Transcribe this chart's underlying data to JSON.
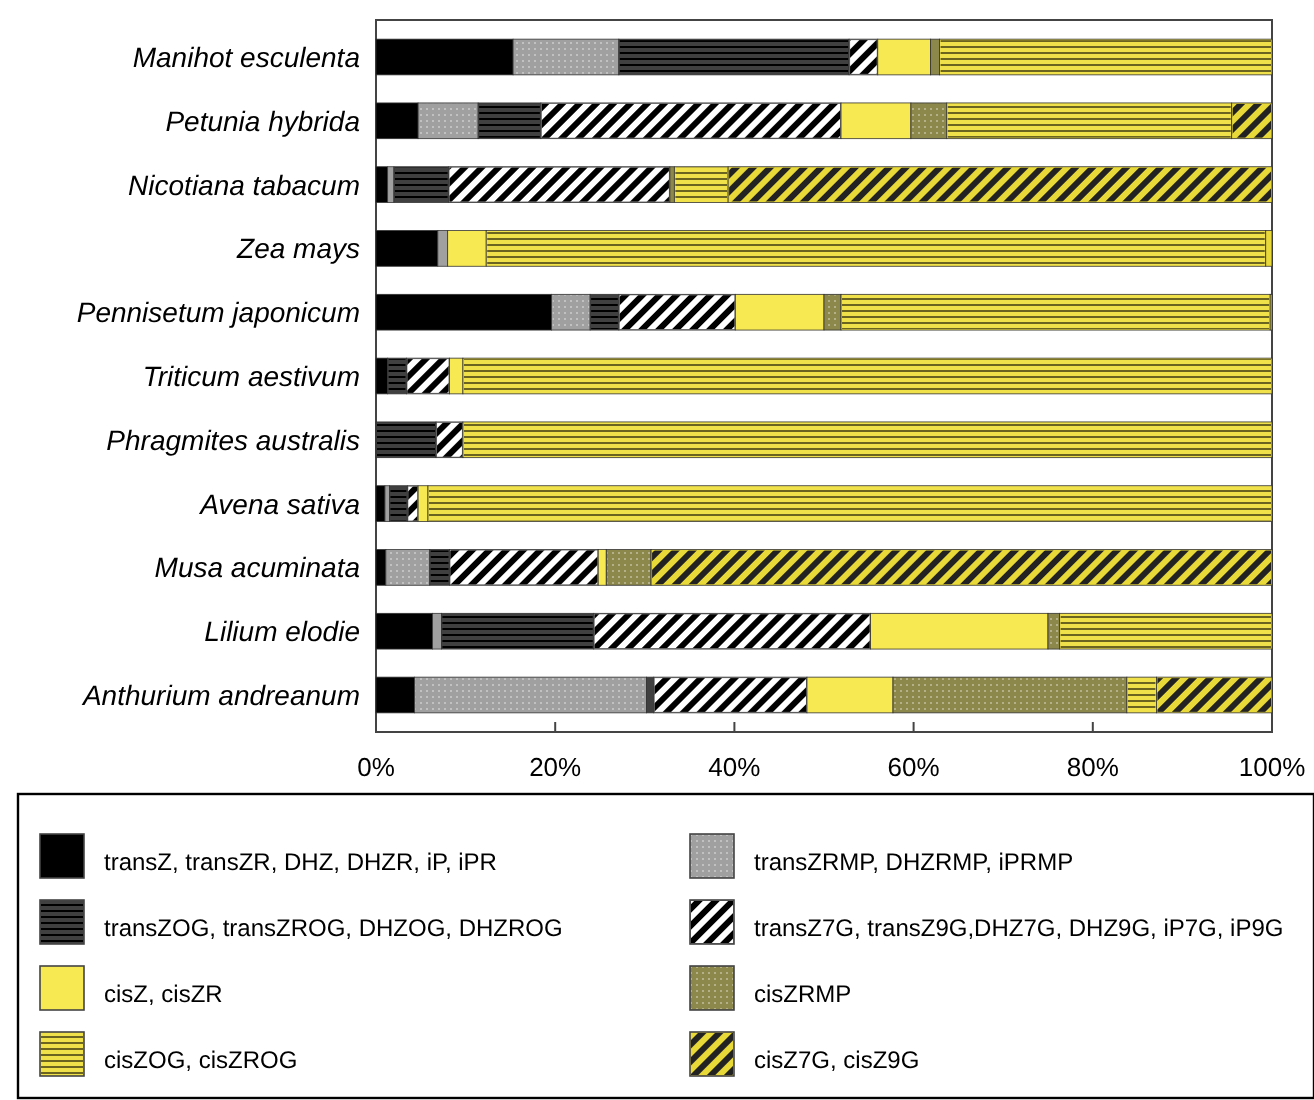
{
  "chart_data": {
    "type": "bar",
    "orientation": "horizontal",
    "stacked": true,
    "categories": [
      "Manihot esculenta",
      "Petunia hybrida",
      "Nicotiana tabacum",
      "Zea mays",
      "Pennisetum japonicum",
      "Triticum aestivum",
      "Phragmites australis",
      "Avena sativa",
      "Musa acuminata",
      "Lilium elodie",
      "Anthurium andreanum"
    ],
    "series": [
      {
        "name": "transZ, transZR, DHZ, DHZR, iP, iPR",
        "color": "#000000",
        "values": [
          15.3,
          4.7,
          1.3,
          6.9,
          19.6,
          1.3,
          0,
          1.0,
          1.1,
          6.3,
          4.3
        ]
      },
      {
        "name": "transZRMP, DHZRMP, iPRMP",
        "color": "#a0a0a0",
        "values": [
          11.8,
          6.7,
          0.7,
          1.1,
          4.3,
          0,
          0,
          0.5,
          4.9,
          1.0,
          25.9
        ]
      },
      {
        "name": "transZOG, transZROG, DHZOG, DHZROG",
        "color": "#404040",
        "values": [
          25.7,
          7.0,
          6.1,
          0,
          3.2,
          2.1,
          6.7,
          2.0,
          2.2,
          17.0,
          0.8
        ]
      },
      {
        "name": "transZ7G, transZ9G,DHZ7G, DHZ9G, iP7G, iP9G",
        "color": "#808080",
        "values": [
          3.2,
          33.5,
          24.7,
          0,
          13.0,
          4.8,
          3.0,
          1.2,
          16.6,
          30.9,
          17.1
        ]
      },
      {
        "name": "cisZ, cisZR",
        "color": "#f7e952",
        "values": [
          5.9,
          7.8,
          0,
          4.3,
          9.9,
          1.5,
          0,
          1.1,
          0.9,
          19.8,
          9.6
        ]
      },
      {
        "name": "cisZRMP",
        "color": "#8c874a",
        "values": [
          1.0,
          4.0,
          0.5,
          0,
          1.9,
          0,
          0,
          0,
          5.0,
          1.3,
          26.1
        ]
      },
      {
        "name": "cisZOG, cisZROG",
        "color": "#f0e14a",
        "values": [
          37.1,
          31.8,
          6.0,
          87.0,
          47.9,
          90.3,
          90.3,
          94.2,
          0,
          23.7,
          3.3
        ]
      },
      {
        "name": "cisZ7G, cisZ9G",
        "color": "#e8d838",
        "values": [
          0,
          4.5,
          60.7,
          0.7,
          0.2,
          0,
          0,
          0,
          69.3,
          0,
          12.9
        ]
      }
    ],
    "xlim": [
      0,
      100
    ],
    "xticks": [
      {
        "value": 0,
        "label": "0%"
      },
      {
        "value": 20,
        "label": "20%"
      },
      {
        "value": 40,
        "label": "40%"
      },
      {
        "value": 60,
        "label": "60%"
      },
      {
        "value": 80,
        "label": "80%"
      },
      {
        "value": 100,
        "label": "100%"
      }
    ],
    "legend": "bottom"
  }
}
